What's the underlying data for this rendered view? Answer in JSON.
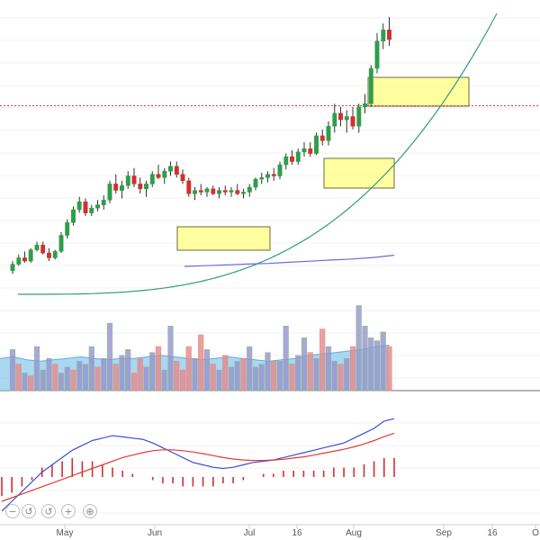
{
  "chart_data": {
    "type": "candlestick",
    "title": "",
    "x_axis": {
      "tick_labels": [
        "May",
        "Jun",
        "Jul",
        "16",
        "Aug",
        "Sep",
        "16",
        "O"
      ]
    },
    "grid": true,
    "resistance_line_color": "#e53935",
    "curve_color": "#2e9e7a",
    "ma_line_color": "#6b6bd6",
    "up_color": "#2e9e4a",
    "down_color": "#d32f2f",
    "highlight_color": "#ffff80",
    "highlight_boxes": [
      "consolidation-june",
      "breakout-august",
      "peak-august"
    ],
    "price": {
      "series_name": "",
      "ohlc": [
        [
          72,
          78,
          70,
          76
        ],
        [
          76,
          82,
          75,
          80
        ],
        [
          80,
          84,
          77,
          78
        ],
        [
          78,
          86,
          77,
          85
        ],
        [
          85,
          90,
          84,
          88
        ],
        [
          88,
          90,
          82,
          83
        ],
        [
          83,
          86,
          78,
          80
        ],
        [
          80,
          85,
          79,
          84
        ],
        [
          84,
          96,
          83,
          94
        ],
        [
          94,
          104,
          92,
          102
        ],
        [
          102,
          112,
          100,
          110
        ],
        [
          110,
          118,
          108,
          115
        ],
        [
          115,
          117,
          106,
          108
        ],
        [
          108,
          113,
          106,
          111
        ],
        [
          111,
          116,
          109,
          113
        ],
        [
          113,
          119,
          110,
          116
        ],
        [
          116,
          128,
          114,
          126
        ],
        [
          126,
          132,
          120,
          122
        ],
        [
          122,
          128,
          117,
          125
        ],
        [
          125,
          134,
          123,
          131
        ],
        [
          131,
          136,
          124,
          126
        ],
        [
          126,
          130,
          120,
          123
        ],
        [
          123,
          128,
          118,
          126
        ],
        [
          126,
          134,
          124,
          132
        ],
        [
          132,
          138,
          129,
          130
        ],
        [
          130,
          136,
          126,
          134
        ],
        [
          134,
          140,
          131,
          137
        ],
        [
          137,
          140,
          130,
          132
        ],
        [
          132,
          135,
          126,
          128
        ],
        [
          128,
          130,
          118,
          120
        ],
        [
          120,
          124,
          116,
          122
        ],
        [
          122,
          126,
          119,
          121
        ],
        [
          121,
          124,
          118,
          123
        ],
        [
          123,
          125,
          119,
          120
        ],
        [
          120,
          124,
          117,
          122
        ],
        [
          122,
          125,
          119,
          121
        ],
        [
          121,
          124,
          118,
          122
        ],
        [
          122,
          126,
          119,
          120
        ],
        [
          120,
          123,
          117,
          121
        ],
        [
          121,
          126,
          118,
          124
        ],
        [
          124,
          130,
          122,
          129
        ],
        [
          129,
          133,
          126,
          130
        ],
        [
          130,
          134,
          127,
          132
        ],
        [
          132,
          136,
          128,
          131
        ],
        [
          131,
          140,
          129,
          138
        ],
        [
          138,
          145,
          135,
          143
        ],
        [
          143,
          147,
          138,
          140
        ],
        [
          140,
          148,
          138,
          146
        ],
        [
          146,
          152,
          143,
          148
        ],
        [
          148,
          152,
          143,
          145
        ],
        [
          145,
          158,
          144,
          156
        ],
        [
          156,
          160,
          150,
          153
        ],
        [
          153,
          165,
          150,
          162
        ],
        [
          162,
          176,
          158,
          170
        ],
        [
          170,
          174,
          162,
          166
        ],
        [
          166,
          172,
          158,
          168
        ],
        [
          168,
          174,
          160,
          162
        ],
        [
          162,
          176,
          158,
          174
        ],
        [
          174,
          182,
          170,
          176
        ],
        [
          176,
          200,
          174,
          198
        ],
        [
          198,
          220,
          195,
          215
        ],
        [
          215,
          226,
          210,
          222
        ],
        [
          222,
          230,
          212,
          216
        ]
      ],
      "moving_average": [
        140,
        140.5,
        141,
        141.6,
        142,
        142.8,
        143.5,
        144.3,
        145,
        146,
        147.5
      ]
    },
    "volume": {
      "values": [
        28,
        18,
        12,
        10,
        30,
        14,
        22,
        18,
        12,
        16,
        14,
        20,
        18,
        30,
        16,
        22,
        46,
        18,
        24,
        28,
        12,
        22,
        16,
        26,
        30,
        14,
        44,
        20,
        14,
        30,
        22,
        38,
        28,
        18,
        14,
        24,
        16,
        20,
        22,
        30,
        16,
        18,
        26,
        20,
        20,
        44,
        18,
        24,
        36,
        26,
        22,
        42,
        30,
        20,
        18,
        22,
        30,
        58,
        44,
        36,
        34,
        40,
        30
      ],
      "up_flags": [
        true,
        false,
        true,
        false,
        true,
        true,
        true,
        false,
        true,
        true,
        false,
        true,
        true,
        true,
        false,
        true,
        true,
        false,
        true,
        true,
        false,
        false,
        true,
        true,
        false,
        true,
        true,
        false,
        false,
        false,
        true,
        false,
        true,
        false,
        true,
        false,
        true,
        true,
        false,
        true,
        true,
        true,
        true,
        false,
        true,
        true,
        false,
        true,
        true,
        false,
        true,
        false,
        true,
        true,
        false,
        true,
        false,
        true,
        true,
        true,
        true,
        true,
        false
      ],
      "moving_average": [
        22,
        23,
        21,
        20,
        21,
        22,
        23,
        22,
        21,
        22,
        22,
        23,
        24,
        23,
        22,
        21,
        22,
        23,
        22,
        21,
        20,
        21,
        22,
        24,
        25,
        26,
        27,
        28,
        30,
        31
      ]
    },
    "macd": {
      "macd_line": [
        -14,
        -10,
        -6,
        -2,
        2,
        5,
        8,
        11,
        13,
        15,
        16,
        17,
        16.5,
        16,
        15.5,
        14,
        12,
        10,
        8,
        6,
        5,
        4,
        3.5,
        4,
        5,
        6,
        6.5,
        7,
        8,
        9,
        10,
        11,
        12,
        13,
        14,
        16,
        18,
        20,
        23,
        24
      ],
      "signal_line": [
        -10,
        -8.5,
        -7,
        -5.5,
        -4,
        -2.5,
        -1,
        0.5,
        2,
        3.5,
        5,
        6.5,
        8,
        9,
        10,
        10.8,
        11.2,
        11.2,
        10.8,
        10.3,
        9.6,
        8.8,
        8,
        7.4,
        7,
        6.8,
        6.8,
        7,
        7.3,
        7.8,
        8.3,
        9,
        9.8,
        10.6,
        11.4,
        12.4,
        13.6,
        15,
        16.6,
        18
      ],
      "histogram": [
        -6,
        -5,
        -3,
        -1,
        3,
        4,
        5,
        6,
        5,
        5,
        4,
        3,
        2,
        1,
        0,
        -1,
        -2,
        -2,
        -3,
        -3,
        -3,
        -3,
        -2,
        -2,
        -1,
        0,
        1,
        1,
        2,
        2,
        2,
        2,
        2,
        3,
        3,
        3,
        4,
        5,
        6,
        6
      ]
    }
  },
  "zoom_controls": {
    "zoom_out_glyph": "−",
    "reset_glyph": "↺",
    "zoom_in_glyph": "+",
    "pan_glyph": "⊕"
  }
}
